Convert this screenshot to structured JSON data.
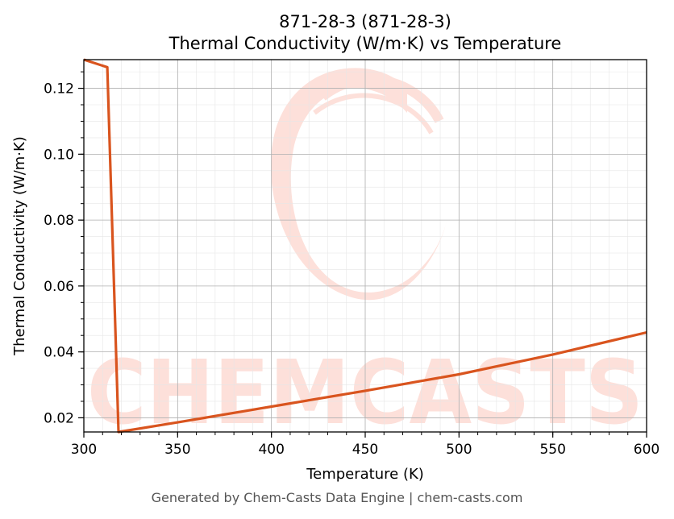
{
  "chart_data": {
    "type": "line",
    "title_line1": "871-28-3 (871-28-3)",
    "title_line2": "Thermal Conductivity (W/m·K) vs Temperature",
    "xlabel": "Temperature (K)",
    "ylabel": "Thermal Conductivity (W/m·K)",
    "xlim": [
      300,
      600
    ],
    "ylim": [
      0.0157,
      0.1287
    ],
    "x_ticks": [
      300,
      350,
      400,
      450,
      500,
      550,
      600
    ],
    "x_tick_labels": [
      "300",
      "350",
      "400",
      "450",
      "500",
      "550",
      "600"
    ],
    "y_ticks": [
      0.02,
      0.04,
      0.06,
      0.08,
      0.1,
      0.12
    ],
    "y_tick_labels": [
      "0.02",
      "0.04",
      "0.06",
      "0.08",
      "0.10",
      "0.12"
    ],
    "grid": true,
    "series": [
      {
        "color": "#d9541e",
        "x": [
          300,
          312.5,
          318.5,
          350,
          400,
          450,
          500,
          550,
          600
        ],
        "y": [
          0.1287,
          0.1264,
          0.0157,
          0.0186,
          0.0234,
          0.0282,
          0.0332,
          0.0392,
          0.0459
        ]
      }
    ]
  },
  "watermark": {
    "text": "CHEMCASTS",
    "color": "#fde0da"
  },
  "footer": "Generated by Chem-Casts Data Engine | chem-casts.com"
}
